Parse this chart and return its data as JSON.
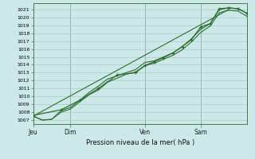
{
  "bg_color": "#cce8e8",
  "grid_color": "#aacccc",
  "line_color": "#2d6e2d",
  "marker_color": "#2d6e2d",
  "xlabel_text": "Pression niveau de la mer( hPa )",
  "ylim": [
    1006.5,
    1021.8
  ],
  "yticks": [
    1007,
    1008,
    1009,
    1010,
    1011,
    1012,
    1013,
    1014,
    1015,
    1016,
    1017,
    1018,
    1019,
    1020,
    1021
  ],
  "day_labels": [
    "Jeu",
    "Dim",
    "Ven",
    "Sam"
  ],
  "day_positions": [
    0,
    4,
    12,
    18
  ],
  "xlim": [
    0,
    23
  ],
  "series1_x": [
    0,
    1,
    2,
    3,
    4,
    5,
    6,
    7,
    8,
    9,
    10,
    11,
    12,
    13,
    14,
    15,
    16,
    17,
    18,
    19,
    20,
    21,
    22,
    23
  ],
  "series1_y": [
    1007.5,
    1007.0,
    1007.1,
    1008.2,
    1008.6,
    1009.5,
    1010.5,
    1011.3,
    1012.2,
    1012.6,
    1013.0,
    1013.4,
    1014.3,
    1014.5,
    1015.0,
    1015.5,
    1016.3,
    1017.3,
    1018.5,
    1019.2,
    1021.0,
    1021.2,
    1021.1,
    1020.5
  ],
  "series2_x": [
    0,
    1,
    2,
    3,
    4,
    5,
    6,
    7,
    8,
    9,
    10,
    11,
    12,
    13,
    14,
    15,
    16,
    17,
    18,
    19,
    20,
    21,
    22,
    23
  ],
  "series2_y": [
    1007.5,
    1007.0,
    1007.1,
    1008.0,
    1008.4,
    1009.3,
    1010.2,
    1010.8,
    1011.8,
    1012.3,
    1012.8,
    1013.1,
    1013.9,
    1014.2,
    1014.7,
    1015.2,
    1015.9,
    1016.9,
    1018.1,
    1018.9,
    1020.6,
    1020.9,
    1020.8,
    1020.1
  ],
  "series3_x": [
    0,
    1,
    2,
    3,
    4,
    5,
    6,
    7,
    8,
    9,
    10,
    11,
    12,
    13,
    14,
    15,
    16,
    17,
    18,
    19,
    20,
    21,
    22,
    23
  ],
  "series3_y": [
    1007.5,
    1007.0,
    1007.1,
    1008.0,
    1008.4,
    1009.3,
    1010.2,
    1010.8,
    1011.8,
    1012.3,
    1012.8,
    1013.1,
    1013.9,
    1014.2,
    1014.7,
    1015.2,
    1015.9,
    1016.9,
    1018.1,
    1018.9,
    1020.6,
    1020.9,
    1020.8,
    1020.1
  ],
  "series4_x": [
    0,
    3,
    5,
    7,
    9,
    11,
    12,
    13,
    14,
    15,
    16,
    17,
    18,
    19,
    20,
    21,
    22,
    23
  ],
  "series4_y": [
    1007.6,
    1008.3,
    1009.5,
    1011.0,
    1012.7,
    1013.0,
    1013.9,
    1014.4,
    1014.9,
    1015.5,
    1016.3,
    1017.2,
    1018.8,
    1019.2,
    1021.1,
    1021.2,
    1021.1,
    1020.5
  ]
}
